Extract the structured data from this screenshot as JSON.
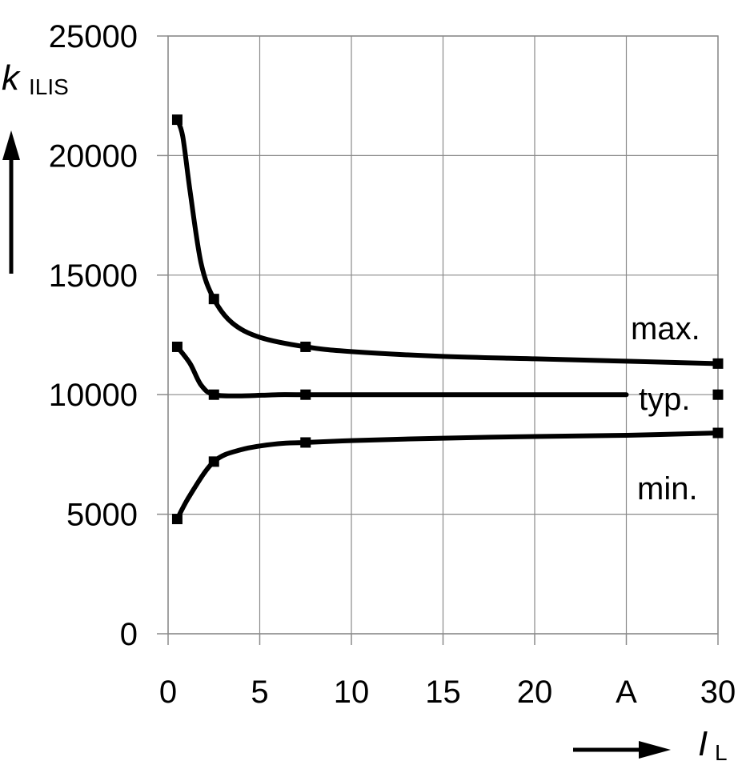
{
  "chart_data": {
    "type": "line",
    "title": "",
    "ylabel": {
      "symbol": "k",
      "subscript": "ILIS"
    },
    "xlabel": {
      "symbol": "I",
      "subscript": "L"
    },
    "xlim": [
      0,
      30
    ],
    "ylim": [
      0,
      25000
    ],
    "x_ticks": [
      {
        "value": 0,
        "label": "0"
      },
      {
        "value": 5,
        "label": "5"
      },
      {
        "value": 10,
        "label": "10"
      },
      {
        "value": 15,
        "label": "15"
      },
      {
        "value": 20,
        "label": "20"
      },
      {
        "value": 25,
        "label": "A"
      },
      {
        "value": 30,
        "label": "30"
      }
    ],
    "y_ticks": [
      {
        "value": 0,
        "label": "0"
      },
      {
        "value": 5000,
        "label": "5000"
      },
      {
        "value": 10000,
        "label": "10000"
      },
      {
        "value": 15000,
        "label": "15000"
      },
      {
        "value": 20000,
        "label": "20000"
      },
      {
        "value": 25000,
        "label": "25000"
      }
    ],
    "grid": true,
    "series": [
      {
        "name": "max.",
        "curve": [
          [
            0.5,
            21500
          ],
          [
            0.8,
            20800
          ],
          [
            1.2,
            18500
          ],
          [
            1.8,
            15500
          ],
          [
            2.5,
            14000
          ],
          [
            3.5,
            13000
          ],
          [
            5,
            12400
          ],
          [
            7.5,
            12000
          ],
          [
            10,
            11800
          ],
          [
            15,
            11600
          ],
          [
            20,
            11500
          ],
          [
            25,
            11400
          ],
          [
            30,
            11300
          ]
        ],
        "markers": [
          [
            0.5,
            21500
          ],
          [
            2.5,
            14000
          ],
          [
            7.5,
            12000
          ],
          [
            30,
            11300
          ]
        ]
      },
      {
        "name": "typ.",
        "curve": [
          [
            0.5,
            12000
          ],
          [
            1.2,
            11300
          ],
          [
            1.8,
            10400
          ],
          [
            2.5,
            10000
          ],
          [
            4,
            9950
          ],
          [
            6,
            10000
          ],
          [
            7.5,
            10000
          ],
          [
            15,
            10000
          ],
          [
            25,
            10000
          ]
        ],
        "markers": [
          [
            0.5,
            12000
          ],
          [
            2.5,
            10000
          ],
          [
            7.5,
            10000
          ],
          [
            30,
            10000
          ]
        ]
      },
      {
        "name": "min.",
        "curve": [
          [
            0.5,
            4800
          ],
          [
            1.2,
            5800
          ],
          [
            2.5,
            7200
          ],
          [
            4,
            7700
          ],
          [
            6,
            7950
          ],
          [
            7.5,
            8000
          ],
          [
            10,
            8080
          ],
          [
            15,
            8180
          ],
          [
            20,
            8250
          ],
          [
            25,
            8300
          ],
          [
            30,
            8400
          ]
        ],
        "markers": [
          [
            0.5,
            4800
          ],
          [
            2.5,
            7200
          ],
          [
            7.5,
            8000
          ],
          [
            30,
            8400
          ]
        ]
      }
    ]
  }
}
